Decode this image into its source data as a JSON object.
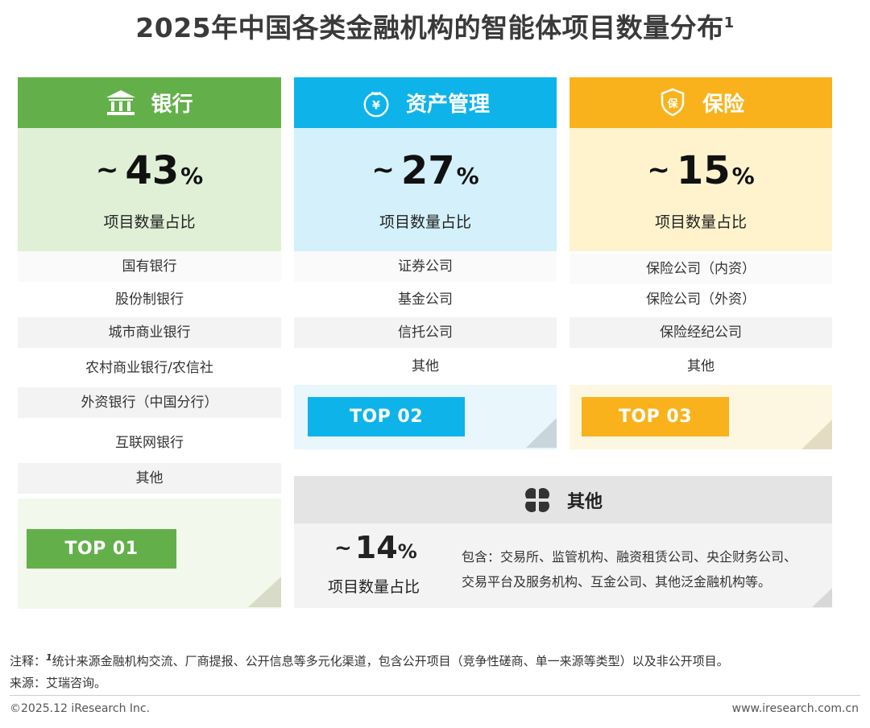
{
  "title": "2025年中国各类金融机构的智能体项目数量分布",
  "title_note": "1",
  "colors": {
    "bank": "#63b04a",
    "asset": "#0eb3ea",
    "insurance": "#f9b21b",
    "other": "#e4e4e4"
  },
  "chart_data": {
    "type": "table",
    "title": "2025年中国各类金融机构的智能体项目数量分布",
    "categories": [
      "银行",
      "资产管理",
      "保险",
      "其他"
    ],
    "values": [
      43,
      27,
      15,
      14
    ],
    "unit": "%",
    "value_label": "项目数量占比",
    "ranks": [
      "TOP 01",
      "TOP 02",
      "TOP 03",
      ""
    ]
  },
  "bank": {
    "name": "银行",
    "icon": "bank-icon",
    "approx": "~",
    "value": "43",
    "unit": "%",
    "label": "项目数量占比",
    "items": [
      "国有银行",
      "股份制银行",
      "城市商业银行",
      "农村商业银行/农信社",
      "外资银行（中国分行）",
      "互联网银行",
      "其他"
    ],
    "rank": "TOP 01"
  },
  "asset": {
    "name": "资产管理",
    "icon": "money-bag-icon",
    "approx": "~",
    "value": "27",
    "unit": "%",
    "label": "项目数量占比",
    "items": [
      "证券公司",
      "基金公司",
      "信托公司",
      "其他"
    ],
    "rank": "TOP 02"
  },
  "insurance": {
    "name": "保险",
    "icon": "insurance-shield-icon",
    "approx": "~",
    "value": "15",
    "unit": "%",
    "label": "项目数量占比",
    "items": [
      "保险公司（内资）",
      "保险公司（外资）",
      "保险经纪公司",
      "其他"
    ],
    "rank": "TOP 03"
  },
  "other": {
    "name": "其他",
    "icon": "clover-icon",
    "approx": "~",
    "value": "14",
    "unit": "%",
    "label": "项目数量占比",
    "desc": [
      "包含：交易所、监管机构、融资租赁公司、央企财务公司、",
      "交易平台及服务机构、互金公司、其他泛金融机构等。"
    ]
  },
  "notes": {
    "note_prefix": "注释：",
    "note_mark": "1",
    "note_text": "统计来源金融机构交流、厂商提报、公开信息等多元化渠道，包含公开项目（竞争性磋商、单一来源等类型）以及非公开项目。",
    "source": "来源：艾瑞咨询。"
  },
  "footer": {
    "copyright": "©2025.12 iResearch Inc.",
    "url": "www.iresearch.com.cn"
  }
}
